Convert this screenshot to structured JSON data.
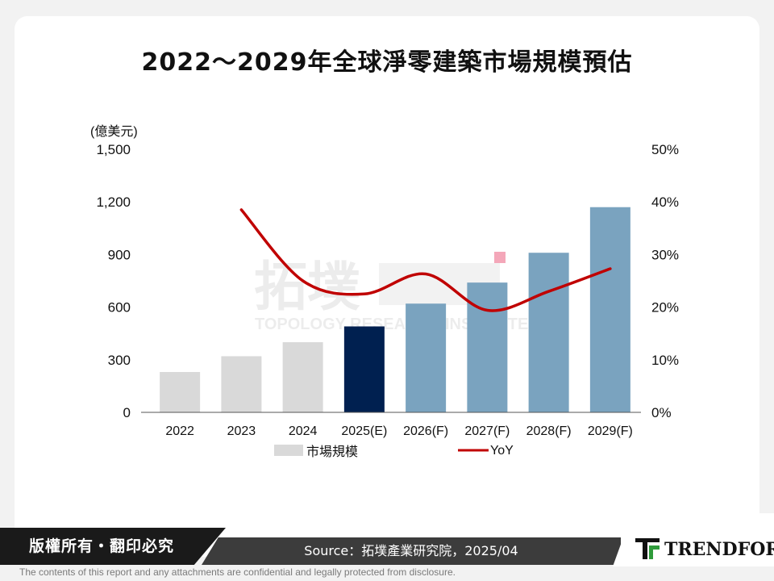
{
  "title": "2022～2029年全球淨零建築市場規模預估",
  "copyright": "版權所有・翻印必究",
  "source": "Source：拓墣產業研究院，2025/04",
  "logo_text": "TRENDFORCE",
  "disclaimer": "The contents of this report and any attachments are confidential and legally protected from disclosure.",
  "watermark": {
    "brand": "拓墣",
    "subtitle": "TOPOLOGY RESEARCH INSTITUTE"
  },
  "colors": {
    "historical_bar": "#d9d9d9",
    "current_bar": "#002050",
    "forecast_bar": "#7aa3bf",
    "yoy_line": "#c00000"
  },
  "chart_data": {
    "type": "bar",
    "categories": [
      "2022",
      "2023",
      "2024",
      "2025(E)",
      "2026(F)",
      "2027(F)",
      "2028(F)",
      "2029(F)"
    ],
    "series": [
      {
        "name": "市場規模",
        "axis": "left",
        "values": [
          230,
          320,
          400,
          490,
          620,
          740,
          910,
          1170
        ],
        "bar_kind": [
          "historical",
          "historical",
          "historical",
          "current",
          "forecast",
          "forecast",
          "forecast",
          "forecast"
        ]
      },
      {
        "name": "YoY",
        "type": "line",
        "axis": "right",
        "values": [
          null,
          38.5,
          25.0,
          22.5,
          26.3,
          19.4,
          23.0,
          27.3
        ]
      }
    ],
    "y_left": {
      "unit_label": "(億美元)",
      "range": [
        0,
        1500
      ],
      "ticks": [
        0,
        300,
        600,
        900,
        1200,
        1500
      ],
      "tick_labels": [
        "0",
        "300",
        "600",
        "900",
        "1,200",
        "1,500"
      ]
    },
    "y_right": {
      "range": [
        0,
        50
      ],
      "ticks": [
        0,
        10,
        20,
        30,
        40,
        50
      ],
      "tick_labels": [
        "0%",
        "10%",
        "20%",
        "30%",
        "40%",
        "50%"
      ]
    },
    "legend": {
      "placement": "bottom",
      "items": [
        {
          "label": "市場規模",
          "kind": "box"
        },
        {
          "label": "YoY",
          "kind": "line"
        }
      ]
    }
  }
}
